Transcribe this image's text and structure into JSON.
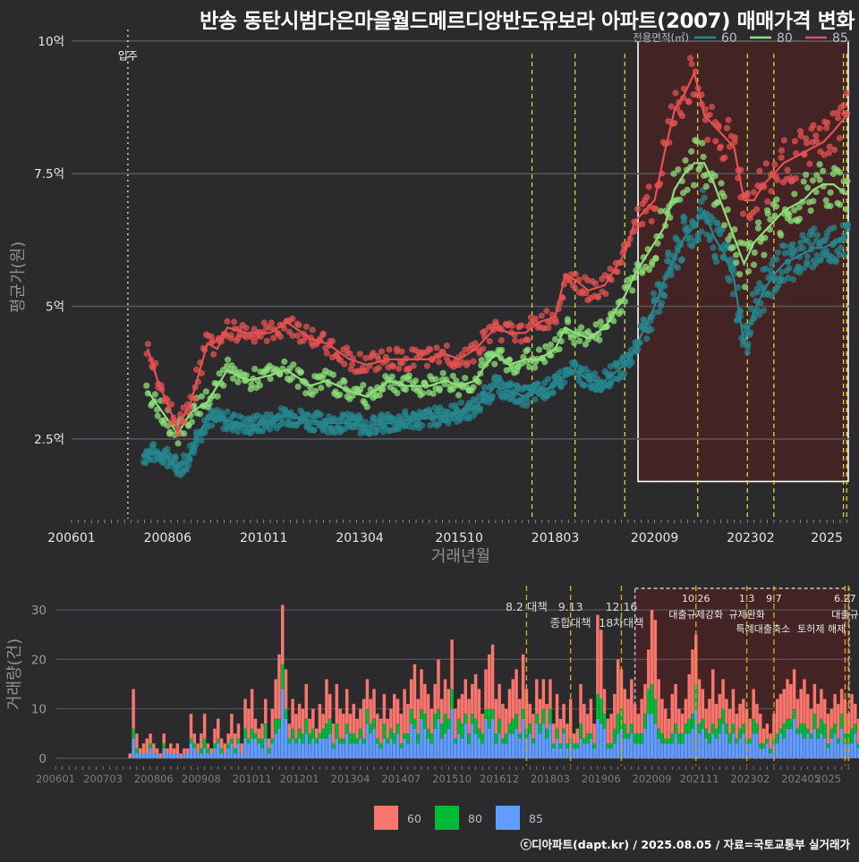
{
  "title": "반송 동탄시범다은마을월드메르디앙반도유보라 아파트(2007) 매매가격 변화",
  "credit": "ⓒ디아파트(dapt.kr) / 2025.08.05 / 자료=국토교통부 실거래가",
  "colors": {
    "background": "#2b2b2d",
    "grid": "#55555a",
    "s60_price": "#26868e",
    "s80_price": "#8de07a",
    "s85_price": "#e65151",
    "s60_bar": "#f8766d",
    "s80_bar": "#00ba38",
    "s85_bar": "#619cff",
    "policy_line": "#e6e62e",
    "vol_policy_line": "#d9a21b",
    "highlight": "#5a1e1e"
  },
  "chart_data": [
    {
      "type": "line",
      "name": "price",
      "xlabel": "거래년월",
      "ylabel": "평균가(원)",
      "legend_title": "전용면적(㎡)",
      "legend_position": "top-right",
      "x_ticks": [
        "200601",
        "200806",
        "201011",
        "201304",
        "201510",
        "201803",
        "202009",
        "202302",
        "2025"
      ],
      "y_ticks": [
        {
          "value": 2.5,
          "label": "2.5억"
        },
        {
          "value": 5,
          "label": "5억"
        },
        {
          "value": 7.5,
          "label": "7.5억"
        },
        {
          "value": 10,
          "label": "10억"
        }
      ],
      "ylim": [
        1.0,
        10.3
      ],
      "xlim": [
        "2006-01",
        "2025-08"
      ],
      "move_in": {
        "date": "2007-06",
        "label": "입주"
      },
      "policy_dates": [
        "2017-08",
        "2018-09",
        "2019-12",
        "2021-10",
        "2023-01",
        "2023-09",
        "2025-06",
        "2025-07"
      ],
      "highlight": {
        "from": "2020-04",
        "to": "2025-08",
        "ymin": 1.7,
        "ymax": 10.0
      },
      "series": [
        {
          "name": "60",
          "points": [
            [
              "2007-11",
              2.2
            ],
            [
              "2008-03",
              2.25
            ],
            [
              "2008-06",
              2.15
            ],
            [
              "2008-09",
              1.95
            ],
            [
              "2008-12",
              2.1
            ],
            [
              "2009-02",
              2.4
            ],
            [
              "2009-06",
              2.9
            ],
            [
              "2009-12",
              2.85
            ],
            [
              "2010-06",
              2.75
            ],
            [
              "2010-11",
              2.8
            ],
            [
              "2011-06",
              2.95
            ],
            [
              "2012-01",
              2.85
            ],
            [
              "2012-06",
              2.8
            ],
            [
              "2013-01",
              2.8
            ],
            [
              "2013-06",
              2.75
            ],
            [
              "2014-01",
              2.8
            ],
            [
              "2014-06",
              2.85
            ],
            [
              "2015-01",
              2.9
            ],
            [
              "2015-06",
              2.95
            ],
            [
              "2015-10",
              3.0
            ],
            [
              "2016-03",
              3.1
            ],
            [
              "2016-06",
              3.3
            ],
            [
              "2016-09",
              3.5
            ],
            [
              "2017-01",
              3.4
            ],
            [
              "2017-06",
              3.3
            ],
            [
              "2017-10",
              3.4
            ],
            [
              "2018-03",
              3.5
            ],
            [
              "2018-06",
              3.7
            ],
            [
              "2018-09",
              3.8
            ],
            [
              "2019-01",
              3.6
            ],
            [
              "2019-06",
              3.6
            ],
            [
              "2019-12",
              3.9
            ],
            [
              "2020-03",
              4.2
            ],
            [
              "2020-06",
              4.6
            ],
            [
              "2020-09",
              5.0
            ],
            [
              "2020-12",
              5.5
            ],
            [
              "2021-03",
              5.9
            ],
            [
              "2021-06",
              6.3
            ],
            [
              "2021-09",
              6.5
            ],
            [
              "2021-12",
              6.8
            ],
            [
              "2022-03",
              6.3
            ],
            [
              "2022-06",
              6.0
            ],
            [
              "2022-09",
              5.5
            ],
            [
              "2022-12",
              4.3
            ],
            [
              "2023-03",
              4.9
            ],
            [
              "2023-06",
              5.3
            ],
            [
              "2023-09",
              5.6
            ],
            [
              "2023-12",
              5.8
            ],
            [
              "2024-03",
              5.9
            ],
            [
              "2024-06",
              6.0
            ],
            [
              "2024-09",
              6.1
            ],
            [
              "2024-12",
              6.1
            ],
            [
              "2025-03",
              6.2
            ],
            [
              "2025-07",
              6.3
            ]
          ]
        },
        {
          "name": "80",
          "points": [
            [
              "2007-12",
              3.4
            ],
            [
              "2008-09",
              2.6
            ],
            [
              "2009-01",
              3.0
            ],
            [
              "2009-06",
              3.2
            ],
            [
              "2009-12",
              3.8
            ],
            [
              "2010-06",
              3.6
            ],
            [
              "2011-01",
              3.7
            ],
            [
              "2011-06",
              3.8
            ],
            [
              "2012-01",
              3.5
            ],
            [
              "2012-06",
              3.6
            ],
            [
              "2013-01",
              3.4
            ],
            [
              "2013-06",
              3.3
            ],
            [
              "2014-01",
              3.6
            ],
            [
              "2014-06",
              3.5
            ],
            [
              "2015-01",
              3.5
            ],
            [
              "2015-06",
              3.6
            ],
            [
              "2015-10",
              3.5
            ],
            [
              "2016-03",
              3.6
            ],
            [
              "2016-06",
              3.9
            ],
            [
              "2016-09",
              4.1
            ],
            [
              "2017-01",
              3.9
            ],
            [
              "2017-06",
              4.0
            ],
            [
              "2017-10",
              4.0
            ],
            [
              "2018-03",
              4.2
            ],
            [
              "2018-06",
              4.6
            ],
            [
              "2018-09",
              4.5
            ],
            [
              "2019-01",
              4.4
            ],
            [
              "2019-06",
              4.6
            ],
            [
              "2019-12",
              5.2
            ],
            [
              "2020-03",
              5.6
            ],
            [
              "2020-06",
              5.9
            ],
            [
              "2020-09",
              6.2
            ],
            [
              "2020-12",
              6.5
            ],
            [
              "2021-03",
              7.2
            ],
            [
              "2021-06",
              7.5
            ],
            [
              "2021-09",
              7.7
            ],
            [
              "2021-12",
              7.7
            ],
            [
              "2022-03",
              7.3
            ],
            [
              "2022-06",
              6.8
            ],
            [
              "2022-09",
              6.3
            ],
            [
              "2022-12",
              5.8
            ],
            [
              "2023-03",
              6.2
            ],
            [
              "2023-06",
              6.4
            ],
            [
              "2023-09",
              6.6
            ],
            [
              "2023-12",
              6.8
            ],
            [
              "2024-03",
              6.9
            ],
            [
              "2024-06",
              7.0
            ],
            [
              "2024-09",
              7.2
            ],
            [
              "2024-12",
              7.3
            ],
            [
              "2025-03",
              7.3
            ],
            [
              "2025-07",
              7.1
            ]
          ]
        },
        {
          "name": "85",
          "points": [
            [
              "2007-12",
              4.2
            ],
            [
              "2008-03",
              3.6
            ],
            [
              "2008-09",
              2.7
            ],
            [
              "2009-01",
              3.2
            ],
            [
              "2009-06",
              4.3
            ],
            [
              "2009-09",
              4.2
            ],
            [
              "2009-12",
              4.6
            ],
            [
              "2010-06",
              4.5
            ],
            [
              "2011-01",
              4.5
            ],
            [
              "2011-06",
              4.7
            ],
            [
              "2012-01",
              4.4
            ],
            [
              "2012-06",
              4.3
            ],
            [
              "2013-01",
              4.0
            ],
            [
              "2013-06",
              3.9
            ],
            [
              "2014-01",
              4.0
            ],
            [
              "2014-06",
              4.0
            ],
            [
              "2015-01",
              4.0
            ],
            [
              "2015-06",
              4.1
            ],
            [
              "2015-10",
              4.0
            ],
            [
              "2016-03",
              4.2
            ],
            [
              "2016-06",
              4.4
            ],
            [
              "2016-09",
              4.6
            ],
            [
              "2017-01",
              4.5
            ],
            [
              "2017-06",
              4.5
            ],
            [
              "2017-10",
              4.7
            ],
            [
              "2018-03",
              4.8
            ],
            [
              "2018-06",
              5.6
            ],
            [
              "2018-09",
              5.5
            ],
            [
              "2019-01",
              5.3
            ],
            [
              "2019-06",
              5.4
            ],
            [
              "2019-12",
              6.0
            ],
            [
              "2020-03",
              6.6
            ],
            [
              "2020-06",
              6.8
            ],
            [
              "2020-09",
              7.0
            ],
            [
              "2020-12",
              7.9
            ],
            [
              "2021-03",
              8.7
            ],
            [
              "2021-06",
              9.0
            ],
            [
              "2021-09",
              9.4
            ],
            [
              "2021-12",
              8.6
            ],
            [
              "2022-03",
              8.4
            ],
            [
              "2022-06",
              8.2
            ],
            [
              "2022-09",
              8.0
            ],
            [
              "2022-12",
              7.0
            ],
            [
              "2023-03",
              7.0
            ],
            [
              "2023-06",
              7.3
            ],
            [
              "2023-09",
              7.5
            ],
            [
              "2023-12",
              7.7
            ],
            [
              "2024-03",
              7.8
            ],
            [
              "2024-06",
              7.9
            ],
            [
              "2024-09",
              8.0
            ],
            [
              "2024-12",
              8.1
            ],
            [
              "2025-03",
              8.3
            ],
            [
              "2025-07",
              8.6
            ]
          ]
        }
      ]
    },
    {
      "type": "bar",
      "name": "volume",
      "stacked": true,
      "ylabel": "거래량(건)",
      "y_ticks": [
        0,
        10,
        20,
        30
      ],
      "ylim": [
        0,
        34
      ],
      "x_ticks": [
        "200601",
        "200703",
        "200806",
        "200908",
        "201011",
        "201201",
        "201304",
        "201407",
        "201510",
        "201612",
        "201803",
        "201906",
        "202009",
        "202111",
        "202302",
        "202405",
        "2025"
      ],
      "start_month": "2006-01",
      "series_names": [
        "60",
        "80",
        "85"
      ],
      "policies": [
        {
          "date": "2017-08",
          "lines": [
            "8.2 대책"
          ]
        },
        {
          "date": "2018-09",
          "lines": [
            "9.13",
            "종합대책"
          ]
        },
        {
          "date": "2019-12",
          "lines": [
            "12.16",
            "18차대책"
          ]
        },
        {
          "date": "2021-10",
          "lines": [
            "10.26",
            "대출규제강화"
          ]
        },
        {
          "date": "2023-01",
          "lines": [
            "1.3",
            "규제완화"
          ]
        },
        {
          "date": "2023-09",
          "lines": [
            "9.7",
            "특례대출축소"
          ]
        },
        {
          "date": "2025-06",
          "lines": [
            "6.27",
            "대출규"
          ]
        },
        {
          "date": "2025-07",
          "lines": [
            "",
            "토허제 해제"
          ]
        }
      ],
      "highlight": {
        "from": "2020-04",
        "to": "2025-08"
      },
      "legend": [
        {
          "name": "60",
          "color": "#f8766d"
        },
        {
          "name": "80",
          "color": "#00ba38"
        },
        {
          "name": "85",
          "color": "#619cff"
        }
      ],
      "monthly_total": [
        0,
        0,
        0,
        0,
        0,
        0,
        0,
        0,
        0,
        0,
        0,
        0,
        0,
        0,
        0,
        0,
        0,
        0,
        0,
        0,
        0,
        0,
        1,
        14,
        5,
        2,
        3,
        4,
        5,
        3,
        2,
        1,
        5,
        2,
        3,
        2,
        3,
        1,
        2,
        2,
        9,
        5,
        3,
        5,
        9,
        3,
        2,
        6,
        8,
        4,
        3,
        5,
        9,
        5,
        7,
        3,
        12,
        10,
        14,
        8,
        6,
        7,
        12,
        4,
        10,
        16,
        21,
        31,
        18,
        7,
        12,
        9,
        11,
        10,
        15,
        8,
        10,
        6,
        11,
        9,
        16,
        13,
        7,
        15,
        10,
        9,
        14,
        9,
        11,
        8,
        10,
        12,
        16,
        12,
        14,
        9,
        8,
        13,
        8,
        10,
        13,
        12,
        9,
        14,
        11,
        16,
        19,
        12,
        18,
        15,
        13,
        10,
        15,
        20,
        12,
        16,
        14,
        24,
        10,
        12,
        13,
        16,
        12,
        15,
        17,
        14,
        9,
        18,
        21,
        23,
        12,
        15,
        11,
        10,
        14,
        16,
        18,
        12,
        21,
        14,
        11,
        9,
        16,
        12,
        16,
        11,
        16,
        7,
        13,
        8,
        11,
        7,
        12,
        5,
        6,
        15,
        11,
        9,
        12,
        7,
        29,
        26,
        14,
        8,
        9,
        13,
        20,
        18,
        14,
        12,
        16,
        11,
        9,
        12,
        15,
        22,
        30,
        28,
        16,
        12,
        10,
        8,
        13,
        15,
        10,
        9,
        12,
        17,
        22,
        25,
        16,
        14,
        10,
        12,
        18,
        11,
        13,
        16,
        12,
        10,
        14,
        9,
        11,
        12,
        10,
        8,
        14,
        11,
        9,
        6,
        7,
        5,
        9,
        12,
        13,
        14,
        16,
        15,
        18,
        12,
        14,
        16,
        13,
        10,
        15,
        11,
        14,
        12,
        9,
        10,
        13,
        11,
        14,
        12,
        9,
        13,
        11,
        8,
        10,
        14,
        9,
        8,
        12,
        6,
        5,
        4,
        3
      ]
    }
  ]
}
